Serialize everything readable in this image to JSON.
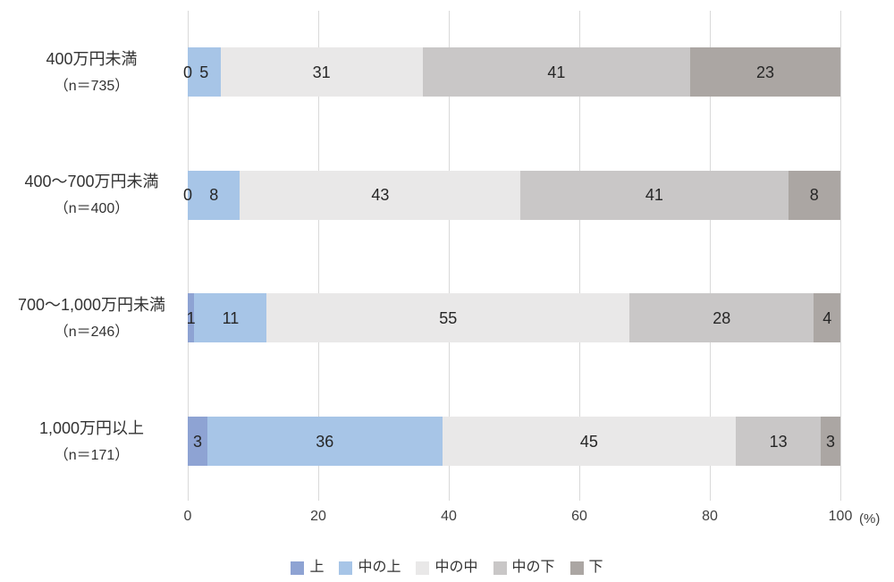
{
  "chart_data": {
    "type": "bar",
    "orientation": "horizontal-stacked",
    "title": "",
    "xlabel": "",
    "ylabel": "",
    "unit_label": "(%)",
    "xlim": [
      0,
      100
    ],
    "x_ticks": [
      "0",
      "20",
      "40",
      "60",
      "80",
      "100"
    ],
    "x_tick_values": [
      0,
      20,
      40,
      60,
      80,
      100
    ],
    "grid": true,
    "legend_position": "bottom",
    "categories": [
      {
        "label": "400万円未満",
        "n_label": "（n＝735）"
      },
      {
        "label": "400～700万円未満",
        "n_label": "（n＝400）"
      },
      {
        "label": "700～1,000万円未満",
        "n_label": "（n＝246）"
      },
      {
        "label": "1,000万円以上",
        "n_label": "（n＝171）"
      }
    ],
    "series": [
      {
        "name": "上",
        "color": "#8ea3d3",
        "values": [
          0,
          0,
          1,
          3
        ]
      },
      {
        "name": "中の上",
        "color": "#a7c5e7",
        "values": [
          5,
          8,
          11,
          36
        ]
      },
      {
        "name": "中の中",
        "color": "#e9e8e8",
        "values": [
          31,
          43,
          55,
          45
        ]
      },
      {
        "name": "中の下",
        "color": "#c9c7c7",
        "values": [
          41,
          41,
          28,
          13
        ]
      },
      {
        "name": "下",
        "color": "#aba6a3",
        "values": [
          23,
          8,
          4,
          3
        ]
      }
    ]
  },
  "colors": {
    "gridline": "#d9d9d9",
    "value_text": "#262626",
    "label_text": "#333333"
  }
}
